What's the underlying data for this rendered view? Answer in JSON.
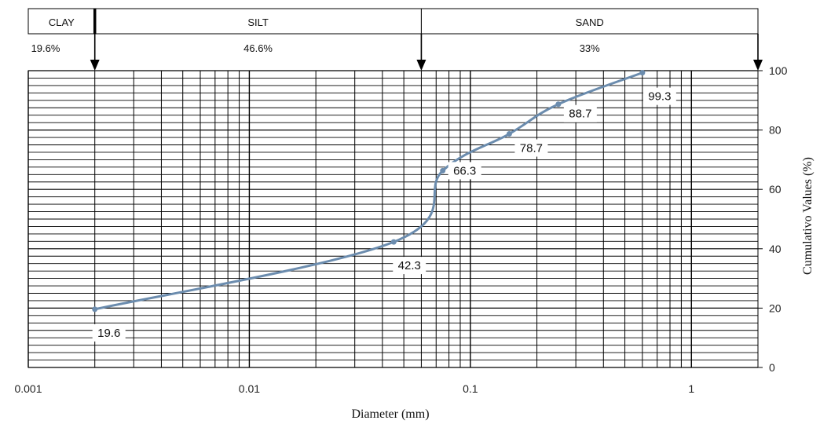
{
  "chart_data": {
    "type": "line",
    "title": "",
    "xlabel": "Diameter (mm)",
    "ylabel": "Cumulativo Values (%)",
    "x_scale": "log",
    "xlim": [
      0.001,
      2
    ],
    "ylim": [
      0,
      100
    ],
    "x_ticks": [
      "0.001",
      "0.01",
      "0.1",
      "1"
    ],
    "y_ticks": [
      "0",
      "20",
      "40",
      "60",
      "80",
      "100"
    ],
    "grid": true,
    "series": [
      {
        "color": "#6b8cae",
        "points": [
          {
            "x": 0.002,
            "y": 19.6,
            "label": "19.6"
          },
          {
            "x": 0.045,
            "y": 42.3,
            "label": "42.3"
          },
          {
            "x": 0.075,
            "y": 66.3,
            "label": "66.3"
          },
          {
            "x": 0.15,
            "y": 78.7,
            "label": "78.7"
          },
          {
            "x": 0.25,
            "y": 88.7,
            "label": "88.7"
          },
          {
            "x": 0.6,
            "y": 99.3,
            "label": "99.3"
          }
        ]
      }
    ],
    "classification": {
      "boundaries": [
        0.002,
        0.06,
        2
      ],
      "zones": [
        {
          "name": "CLAY",
          "percent": "19.6%",
          "from": 0.001,
          "to": 0.002
        },
        {
          "name": "SILT",
          "percent": "46.6%",
          "from": 0.002,
          "to": 0.06
        },
        {
          "name": "SAND",
          "percent": "33%",
          "from": 0.06,
          "to": 2
        }
      ]
    }
  }
}
